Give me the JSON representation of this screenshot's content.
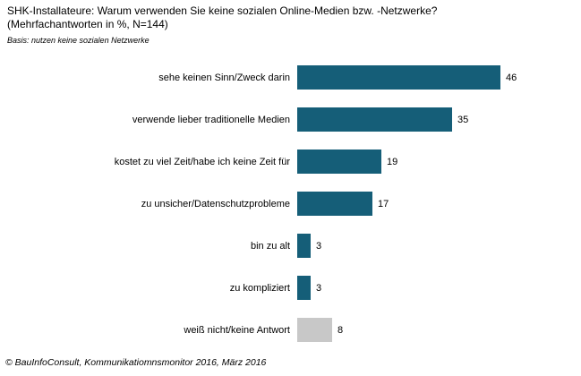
{
  "header": {
    "title": "SHK-Installateure: Warum verwenden Sie keine sozialen Online-Medien bzw. -Netzwerke?",
    "subtitle": "(Mehrfachantworten in %, N=144)",
    "basis": "Basis: nutzen keine sozialen Netzwerke"
  },
  "footer": {
    "source": "© BauInfoConsult, Kommunikatiomnsmonitor 2016, März 2016"
  },
  "colors": {
    "bar_primary": "#155E78",
    "bar_neutral": "#C8C8C8"
  },
  "chart_data": {
    "type": "bar",
    "orientation": "horizontal",
    "title": "SHK-Installateure: Warum verwenden Sie keine sozialen Online-Medien bzw. -Netzwerke?",
    "subtitle": "(Mehrfachantworten in %, N=144)",
    "unit": "%",
    "n": 144,
    "categories": [
      "sehe keinen Sinn/Zweck darin",
      "verwende lieber traditionelle Medien",
      "kostet zu viel Zeit/habe ich keine Zeit für",
      "zu unsicher/Datenschutzprobleme",
      "bin zu alt",
      "zu kompliziert",
      "weiß nicht/keine Antwort"
    ],
    "values": [
      46,
      35,
      19,
      17,
      3,
      3,
      8
    ],
    "bar_colors": [
      "#155E78",
      "#155E78",
      "#155E78",
      "#155E78",
      "#155E78",
      "#155E78",
      "#C8C8C8"
    ],
    "xlim": [
      0,
      46
    ],
    "grid": false,
    "legend": false,
    "data_labels": "outside-end"
  }
}
